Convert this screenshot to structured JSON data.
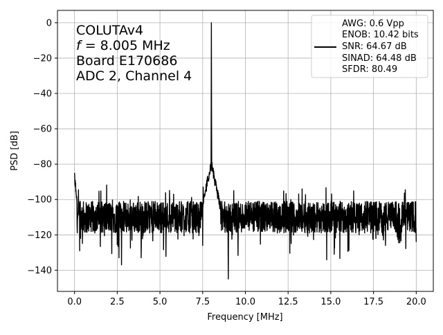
{
  "chart_data": {
    "type": "line",
    "xlabel": "Frequency [MHz]",
    "ylabel": "PSD [dB]",
    "xlim": [
      -1.0,
      21.0
    ],
    "ylim": [
      -152,
      7
    ],
    "x_ticks": [
      "0.0",
      "2.5",
      "5.0",
      "7.5",
      "10.0",
      "12.5",
      "15.0",
      "17.5",
      "20.0"
    ],
    "y_ticks": [
      "0",
      "−20",
      "−40",
      "−60",
      "−80",
      "−100",
      "−120",
      "−140"
    ],
    "grid": true,
    "line_color": "#000000",
    "annotation_lines": [
      "COLUTAv4",
      "= 8.005 MHz",
      "Board E170686",
      "ADC 2, Channel 4"
    ],
    "annotation_f_symbol": "f",
    "legend_placement": "top-right",
    "legend_lines": [
      "AWG: 0.6 Vpp",
      "ENOB: 10.42 bits",
      "SNR: 64.67 dB",
      "SINAD: 64.48 dB",
      "SFDR: 80.49"
    ],
    "series": [
      {
        "signal_freq": 8.005,
        "peak_db": 0,
        "noise_floor_db": -110,
        "skirt_top_db": -80,
        "dc_start_db": -88,
        "notch_freq": 9.0,
        "notch_min_db": -145,
        "minima": [
          [
            0.3,
            -129
          ],
          [
            2.75,
            -137
          ],
          [
            2.6,
            -133
          ],
          [
            3.9,
            -133
          ],
          [
            7.5,
            -126
          ],
          [
            15.2,
            -131
          ],
          [
            18.2,
            -126
          ],
          [
            20.0,
            -124
          ]
        ]
      }
    ]
  }
}
